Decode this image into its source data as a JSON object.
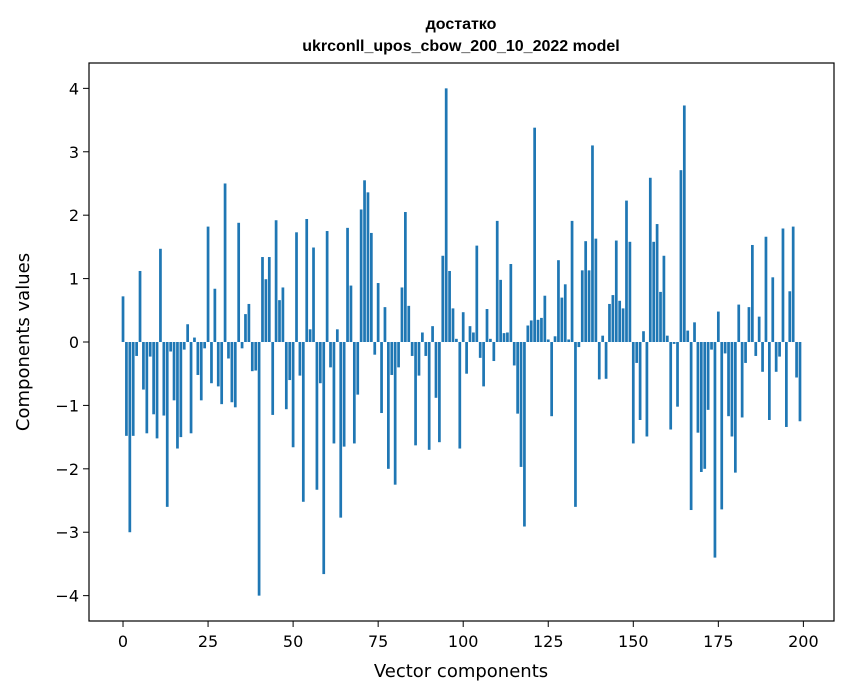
{
  "chart_data": {
    "type": "bar",
    "title": "достатко",
    "subtitle": "ukrconll_upos_cbow_200_10_2022 model",
    "xlabel": "Vector components",
    "ylabel": "Components values",
    "xlim": [
      -10,
      209
    ],
    "ylim": [
      -4.4,
      4.4
    ],
    "xticks": [
      0,
      25,
      50,
      75,
      100,
      125,
      150,
      175,
      200
    ],
    "yticks": [
      -4,
      -3,
      -2,
      -1,
      0,
      1,
      2,
      3,
      4
    ],
    "grid": false,
    "bar_color": "#1f77b4",
    "x": [
      0,
      1,
      2,
      3,
      4,
      5,
      6,
      7,
      8,
      9,
      10,
      11,
      12,
      13,
      14,
      15,
      16,
      17,
      18,
      19,
      20,
      21,
      22,
      23,
      24,
      25,
      26,
      27,
      28,
      29,
      30,
      31,
      32,
      33,
      34,
      35,
      36,
      37,
      38,
      39,
      40,
      41,
      42,
      43,
      44,
      45,
      46,
      47,
      48,
      49,
      50,
      51,
      52,
      53,
      54,
      55,
      56,
      57,
      58,
      59,
      60,
      61,
      62,
      63,
      64,
      65,
      66,
      67,
      68,
      69,
      70,
      71,
      72,
      73,
      74,
      75,
      76,
      77,
      78,
      79,
      80,
      81,
      82,
      83,
      84,
      85,
      86,
      87,
      88,
      89,
      90,
      91,
      92,
      93,
      94,
      95,
      96,
      97,
      98,
      99,
      100,
      101,
      102,
      103,
      104,
      105,
      106,
      107,
      108,
      109,
      110,
      111,
      112,
      113,
      114,
      115,
      116,
      117,
      118,
      119,
      120,
      121,
      122,
      123,
      124,
      125,
      126,
      127,
      128,
      129,
      130,
      131,
      132,
      133,
      134,
      135,
      136,
      137,
      138,
      139,
      140,
      141,
      142,
      143,
      144,
      145,
      146,
      147,
      148,
      149,
      150,
      151,
      152,
      153,
      154,
      155,
      156,
      157,
      158,
      159,
      160,
      161,
      162,
      163,
      164,
      165,
      166,
      167,
      168,
      169,
      170,
      171,
      172,
      173,
      174,
      175,
      176,
      177,
      178,
      179,
      180,
      181,
      182,
      183,
      184,
      185,
      186,
      187,
      188,
      189,
      190,
      191,
      192,
      193,
      194,
      195,
      196,
      197,
      198,
      199
    ],
    "values": [
      0.72,
      -1.48,
      -3.0,
      -1.48,
      -0.22,
      1.12,
      -0.75,
      -1.44,
      -0.23,
      -1.14,
      -1.52,
      1.47,
      -1.16,
      -2.6,
      -0.15,
      -0.92,
      -1.68,
      -1.5,
      -0.12,
      0.28,
      -1.44,
      0.07,
      -0.52,
      -0.92,
      -0.1,
      1.82,
      -0.65,
      0.84,
      -0.7,
      -0.98,
      2.5,
      -0.26,
      -0.95,
      -1.03,
      1.88,
      -0.1,
      0.44,
      0.6,
      -0.46,
      -0.45,
      -4.0,
      1.34,
      0.99,
      1.34,
      -1.15,
      1.92,
      0.66,
      0.86,
      -1.06,
      -0.6,
      -1.66,
      1.73,
      -0.53,
      -2.52,
      1.94,
      0.2,
      1.49,
      -2.33,
      -0.65,
      -3.66,
      1.75,
      -0.4,
      -1.6,
      0.2,
      -2.77,
      -1.65,
      1.8,
      0.89,
      -1.6,
      -0.83,
      2.09,
      2.55,
      2.36,
      1.72,
      -0.2,
      0.93,
      -1.12,
      0.55,
      -2.0,
      -0.52,
      -2.25,
      -0.4,
      0.86,
      2.05,
      0.57,
      -0.22,
      -1.63,
      -0.53,
      0.15,
      -0.22,
      -1.7,
      0.25,
      -0.88,
      -1.58,
      1.36,
      4.0,
      1.12,
      0.53,
      0.05,
      -1.68,
      0.47,
      -0.5,
      0.25,
      0.15,
      1.52,
      -0.25,
      -0.7,
      0.52,
      0.05,
      -0.3,
      1.91,
      0.98,
      0.14,
      0.15,
      1.23,
      -0.37,
      -1.13,
      -1.97,
      -2.91,
      0.26,
      0.34,
      3.38,
      0.35,
      0.38,
      0.73,
      0.04,
      -1.17,
      0.09,
      1.29,
      0.7,
      0.91,
      0.04,
      1.91,
      -2.6,
      -0.08,
      1.13,
      1.59,
      1.13,
      3.1,
      1.63,
      -0.59,
      0.1,
      -0.58,
      0.6,
      0.74,
      1.6,
      0.65,
      0.53,
      2.23,
      1.58,
      -1.6,
      -0.33,
      -1.23,
      0.17,
      -1.49,
      2.59,
      1.58,
      1.86,
      0.79,
      1.36,
      0.1,
      -1.38,
      -0.03,
      -1.02,
      2.71,
      3.73,
      0.18,
      -2.65,
      0.31,
      -1.43,
      -2.05,
      -2.0,
      -1.07,
      -0.12,
      -3.4,
      0.48,
      -2.64,
      -0.18,
      -1.17,
      -1.49,
      -2.06,
      0.59,
      -1.19,
      -0.33,
      0.55,
      1.53,
      -0.22,
      0.4,
      -0.47,
      1.66,
      -1.23,
      1.02,
      -0.47,
      -0.23,
      1.79,
      -1.34,
      0.8,
      1.82,
      -0.56,
      -1.25
    ]
  }
}
